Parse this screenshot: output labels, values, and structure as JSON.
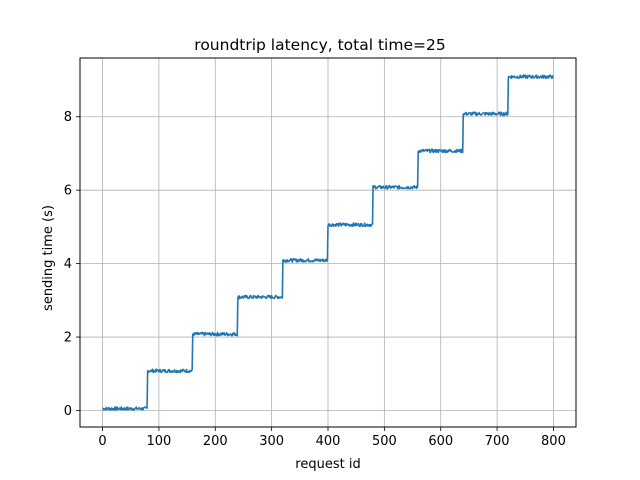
{
  "chart_data": {
    "type": "line",
    "title": "roundtrip latency, total time=25",
    "xlabel": "request id",
    "ylabel": "sending time (s)",
    "xlim": [
      -40,
      840
    ],
    "ylim": [
      -0.45,
      9.6
    ],
    "xticks": [
      0,
      100,
      200,
      300,
      400,
      500,
      600,
      700,
      800
    ],
    "yticks": [
      0,
      2,
      4,
      6,
      8
    ],
    "grid": true,
    "series": [
      {
        "color": "#1f77b4",
        "steps": [
          {
            "x_start": 0,
            "x_end": 79,
            "y": 0.05
          },
          {
            "x_start": 80,
            "x_end": 159,
            "y": 1.08
          },
          {
            "x_start": 160,
            "x_end": 239,
            "y": 2.08
          },
          {
            "x_start": 240,
            "x_end": 319,
            "y": 3.09
          },
          {
            "x_start": 320,
            "x_end": 399,
            "y": 4.09
          },
          {
            "x_start": 400,
            "x_end": 479,
            "y": 5.06
          },
          {
            "x_start": 480,
            "x_end": 559,
            "y": 6.08
          },
          {
            "x_start": 560,
            "x_end": 639,
            "y": 7.07
          },
          {
            "x_start": 640,
            "x_end": 719,
            "y": 8.08
          },
          {
            "x_start": 720,
            "x_end": 799,
            "y": 9.09
          }
        ]
      }
    ]
  }
}
